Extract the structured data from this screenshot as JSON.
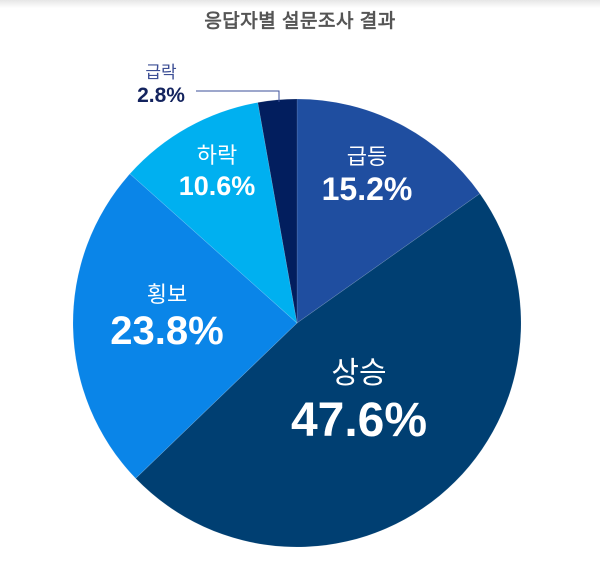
{
  "chart_data": {
    "type": "pie",
    "title": "응답자별 설문조사 결과",
    "start_angle_deg": 0,
    "direction": "clockwise",
    "center": [
      297,
      323
    ],
    "radius": 224,
    "categories": [
      "급등",
      "상승",
      "횡보",
      "하락",
      "급락"
    ],
    "values": [
      15.2,
      47.6,
      23.8,
      10.6,
      2.8
    ],
    "labels": [
      "15.2%",
      "47.6%",
      "23.8%",
      "10.6%",
      "2.8%"
    ],
    "colors": [
      "#1f4ea0",
      "#003f72",
      "#0a85e8",
      "#00b0f0",
      "#021e5e"
    ],
    "annotations": [
      {
        "category": "급락",
        "type": "leader-line",
        "text": "2.8%"
      }
    ],
    "legend": "none"
  },
  "leader_line": {
    "color": "#3b4f9a",
    "points": [
      [
        196,
        91
      ],
      [
        279,
        91
      ],
      [
        279,
        102
      ]
    ]
  },
  "slice_labels": {
    "geupdeung": {
      "name": "급등",
      "pct": "15.2%"
    },
    "sangseung": {
      "name": "상승",
      "pct": "47.6%"
    },
    "hoengbo": {
      "name": "횡보",
      "pct": "23.8%"
    },
    "harak": {
      "name": "하락",
      "pct": "10.6%"
    },
    "geuprak": {
      "name": "급락",
      "pct": "2.8%"
    }
  }
}
